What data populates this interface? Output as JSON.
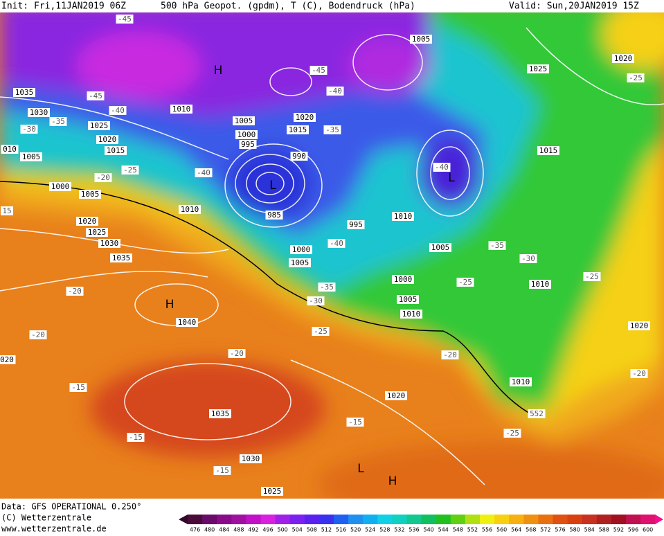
{
  "header": {
    "init": "Init: Fri,11JAN2019 06Z",
    "title": "500 hPa Geopot. (gpdm), T (C), Bodendruck (hPa)",
    "valid": "Valid: Sun,20JAN2019 15Z"
  },
  "map": {
    "pressure_labels": [
      "1005",
      "1025",
      "1020",
      "1035",
      "1010",
      "1030",
      "1025",
      "1020",
      "1015",
      "1005",
      "1000",
      "995",
      "1020",
      "1015",
      "990",
      "1015",
      "1005",
      "1000",
      "1005",
      "1010",
      "985",
      "995",
      "1010",
      "1020",
      "1025",
      "1030",
      "1035",
      "1005",
      "1000",
      "1005",
      "1000",
      "1010",
      "1005",
      "1010",
      "1040",
      "1020",
      "1020",
      "1010",
      "1035",
      "1030",
      "1025",
      "010",
      "020"
    ],
    "temperature_labels": [
      "-45",
      "-45",
      "-40",
      "-45",
      "-40",
      "-35",
      "-30",
      "-35",
      "-25",
      "-20",
      "-40",
      "-40",
      "-25",
      "-40",
      "-35",
      "-30",
      "-25",
      "-35",
      "-30",
      "-25",
      "-20",
      "-25",
      "-20",
      "-20",
      "-20",
      "-20",
      "-15",
      "-15",
      "-15",
      "-25",
      "-15",
      "552",
      "15"
    ],
    "pressure_centers": [
      "H",
      "L",
      "L",
      "H",
      "L",
      "H"
    ]
  },
  "footer": {
    "data": "Data: GFS OPERATIONAL 0.250°",
    "copyright": "(C) Wetterzentrale",
    "url": "www.wetterzentrale.de"
  },
  "colorbar": {
    "labels": [
      476,
      480,
      484,
      488,
      492,
      496,
      500,
      504,
      508,
      512,
      516,
      520,
      524,
      528,
      532,
      536,
      540,
      544,
      548,
      552,
      556,
      560,
      564,
      568,
      572,
      576,
      580,
      584,
      588,
      592,
      596,
      600
    ]
  }
}
